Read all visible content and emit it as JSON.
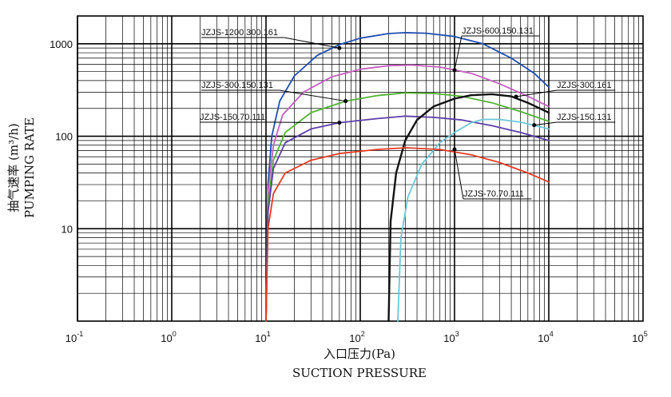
{
  "chart_data": {
    "type": "line",
    "title": "",
    "xlabel_cn": "入口压力(Pa)",
    "xlabel_en": "SUCTION PRESSURE",
    "ylabel_cn": "抽气速率 (m³/h)",
    "ylabel_en": "PUMPING RATE",
    "xscale": "log",
    "yscale": "log",
    "xlim": [
      0.1,
      100000
    ],
    "ylim": [
      1,
      2000
    ],
    "grid": true,
    "x_ticks": [
      {
        "base": "10",
        "exp": "-1"
      },
      {
        "base": "10",
        "exp": "0"
      },
      {
        "base": "10",
        "exp": "1"
      },
      {
        "base": "10",
        "exp": "2"
      },
      {
        "base": "10",
        "exp": "3"
      },
      {
        "base": "10",
        "exp": "4"
      },
      {
        "base": "10",
        "exp": "5"
      }
    ],
    "y_ticks": [
      "10",
      "100",
      "1000"
    ],
    "series": [
      {
        "name": "JZJS-1200.300.161",
        "color": "#1f4fb0",
        "points": [
          [
            10,
            1
          ],
          [
            10.5,
            30
          ],
          [
            11.5,
            100
          ],
          [
            14,
            240
          ],
          [
            20,
            450
          ],
          [
            35,
            750
          ],
          [
            60,
            980
          ],
          [
            100,
            1150
          ],
          [
            200,
            1290
          ],
          [
            300,
            1320
          ],
          [
            500,
            1300
          ],
          [
            1000,
            1200
          ],
          [
            2000,
            1000
          ],
          [
            4000,
            700
          ],
          [
            7000,
            480
          ],
          [
            10000,
            340
          ]
        ]
      },
      {
        "name": "JZJS-600.150.131",
        "color": "#c45fc0",
        "points": [
          [
            10,
            1
          ],
          [
            10.5,
            25
          ],
          [
            12,
            80
          ],
          [
            15,
            170
          ],
          [
            25,
            300
          ],
          [
            50,
            440
          ],
          [
            100,
            530
          ],
          [
            200,
            580
          ],
          [
            350,
            590
          ],
          [
            700,
            560
          ],
          [
            1500,
            480
          ],
          [
            3000,
            370
          ],
          [
            6000,
            270
          ],
          [
            10000,
            210
          ]
        ]
      },
      {
        "name": "JZJS-300.150.131",
        "color": "#52b334",
        "points": [
          [
            10,
            1
          ],
          [
            10.5,
            18
          ],
          [
            12,
            55
          ],
          [
            16,
            110
          ],
          [
            30,
            180
          ],
          [
            70,
            240
          ],
          [
            150,
            275
          ],
          [
            300,
            295
          ],
          [
            600,
            290
          ],
          [
            1200,
            270
          ],
          [
            2500,
            230
          ],
          [
            5000,
            185
          ],
          [
            10000,
            145
          ]
        ]
      },
      {
        "name": "JZJS-150.70.111",
        "color": "#5a3fa8",
        "points": [
          [
            10,
            1
          ],
          [
            10.5,
            15
          ],
          [
            12,
            45
          ],
          [
            16,
            85
          ],
          [
            30,
            120
          ],
          [
            60,
            140
          ],
          [
            150,
            155
          ],
          [
            300,
            165
          ],
          [
            600,
            160
          ],
          [
            1200,
            150
          ],
          [
            2500,
            130
          ],
          [
            5000,
            110
          ],
          [
            10000,
            90
          ]
        ]
      },
      {
        "name": "JZJS-300.161",
        "color": "#111111",
        "points": [
          [
            200,
            1
          ],
          [
            210,
            12
          ],
          [
            240,
            40
          ],
          [
            300,
            90
          ],
          [
            400,
            150
          ],
          [
            600,
            210
          ],
          [
            1000,
            255
          ],
          [
            1500,
            278
          ],
          [
            2500,
            285
          ],
          [
            4000,
            270
          ],
          [
            6000,
            230
          ],
          [
            10000,
            180
          ]
        ]
      },
      {
        "name": "JZJS-150.131",
        "color": "#6cc7d8",
        "points": [
          [
            250,
            1
          ],
          [
            270,
            8
          ],
          [
            320,
            22
          ],
          [
            450,
            50
          ],
          [
            700,
            85
          ],
          [
            1000,
            110
          ],
          [
            1500,
            140
          ],
          [
            2000,
            152
          ],
          [
            3000,
            152
          ],
          [
            5000,
            142
          ],
          [
            10000,
            120
          ]
        ]
      },
      {
        "name": "JZJS-70.70.111",
        "color": "#e23b23",
        "points": [
          [
            10,
            1
          ],
          [
            10.5,
            10
          ],
          [
            12,
            24
          ],
          [
            16,
            40
          ],
          [
            30,
            55
          ],
          [
            60,
            65
          ],
          [
            150,
            72
          ],
          [
            300,
            75
          ],
          [
            700,
            72
          ],
          [
            1500,
            63
          ],
          [
            3000,
            52
          ],
          [
            6000,
            40
          ],
          [
            10000,
            32
          ]
        ]
      }
    ]
  }
}
